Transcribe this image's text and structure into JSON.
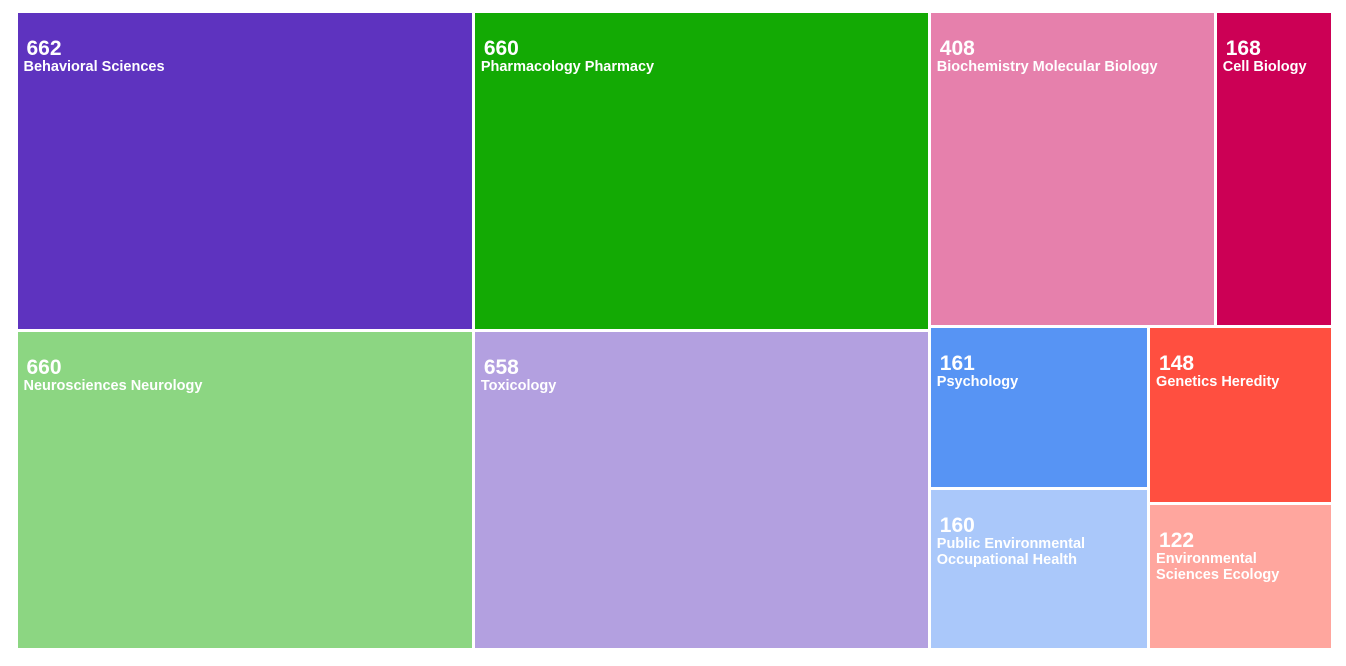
{
  "chart_data": {
    "type": "treemap",
    "categories": [
      "Behavioral Sciences",
      "Pharmacology Pharmacy",
      "Neurosciences Neurology",
      "Toxicology",
      "Biochemistry Molecular Biology",
      "Cell Biology",
      "Psychology",
      "Public Environmental Occupational Health",
      "Genetics Heredity",
      "Environmental Sciences Ecology"
    ],
    "values": [
      662,
      660,
      660,
      658,
      408,
      168,
      161,
      160,
      148,
      122
    ],
    "colors": [
      "#5e33bf",
      "#13aa04",
      "#8cd682",
      "#b3a0e0",
      "#e680ac",
      "#cc0055",
      "#5794f4",
      "#aac8fa",
      "#ff4f40",
      "#ffa69e"
    ]
  }
}
